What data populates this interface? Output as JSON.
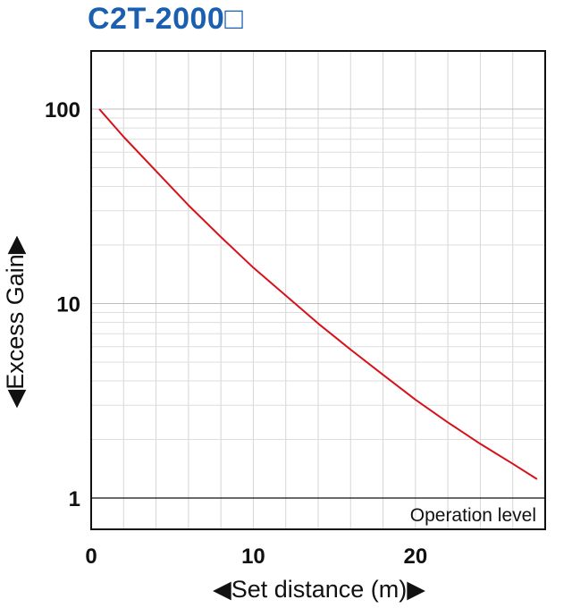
{
  "chart_data": {
    "type": "line",
    "title": "C2T-2000□",
    "xlabel": "◀Set distance (m)▶",
    "ylabel": "◀Excess Gain▶",
    "x_scale": "linear",
    "y_scale": "log",
    "xlim": [
      0,
      28
    ],
    "ylim": [
      0.8,
      200
    ],
    "x_ticks": [
      "0",
      "10",
      "20"
    ],
    "y_ticks": [
      "1",
      "10",
      "100"
    ],
    "grid": true,
    "legend": "none",
    "annotations": [
      {
        "text": "Operation level",
        "y": 1
      }
    ],
    "series": [
      {
        "color": "#d7111a",
        "x": [
          0.5,
          2,
          4,
          6,
          8,
          10,
          12,
          14,
          16,
          18,
          20,
          22,
          24,
          26,
          27.5
        ],
        "y": [
          100,
          72,
          48,
          32,
          22,
          15.3,
          11,
          7.9,
          5.8,
          4.3,
          3.2,
          2.45,
          1.9,
          1.5,
          1.25
        ]
      }
    ]
  }
}
